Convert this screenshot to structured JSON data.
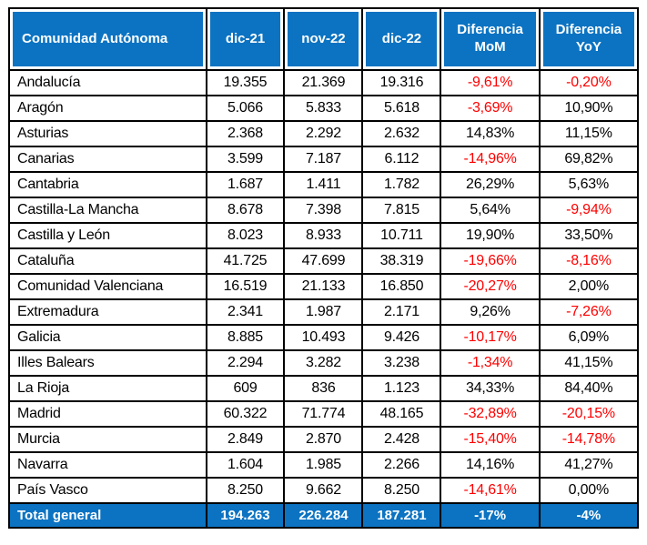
{
  "table": {
    "columns": [
      "Comunidad Autónoma",
      "dic-21",
      "nov-22",
      "dic-22",
      "Diferencia MoM",
      "Diferencia YoY"
    ],
    "rows": [
      {
        "name": "Andalucía",
        "dic21": "19.355",
        "nov22": "21.369",
        "dic22": "19.316",
        "mom": "-9,61%",
        "yoy": "-0,20%"
      },
      {
        "name": "Aragón",
        "dic21": "5.066",
        "nov22": "5.833",
        "dic22": "5.618",
        "mom": "-3,69%",
        "yoy": "10,90%"
      },
      {
        "name": "Asturias",
        "dic21": "2.368",
        "nov22": "2.292",
        "dic22": "2.632",
        "mom": "14,83%",
        "yoy": "11,15%"
      },
      {
        "name": "Canarias",
        "dic21": "3.599",
        "nov22": "7.187",
        "dic22": "6.112",
        "mom": "-14,96%",
        "yoy": "69,82%"
      },
      {
        "name": "Cantabria",
        "dic21": "1.687",
        "nov22": "1.411",
        "dic22": "1.782",
        "mom": "26,29%",
        "yoy": "5,63%"
      },
      {
        "name": "Castilla-La Mancha",
        "dic21": "8.678",
        "nov22": "7.398",
        "dic22": "7.815",
        "mom": "5,64%",
        "yoy": "-9,94%"
      },
      {
        "name": "Castilla y León",
        "dic21": "8.023",
        "nov22": "8.933",
        "dic22": "10.711",
        "mom": "19,90%",
        "yoy": "33,50%"
      },
      {
        "name": "Cataluña",
        "dic21": "41.725",
        "nov22": "47.699",
        "dic22": "38.319",
        "mom": "-19,66%",
        "yoy": "-8,16%"
      },
      {
        "name": "Comunidad Valenciana",
        "dic21": "16.519",
        "nov22": "21.133",
        "dic22": "16.850",
        "mom": "-20,27%",
        "yoy": "2,00%"
      },
      {
        "name": "Extremadura",
        "dic21": "2.341",
        "nov22": "1.987",
        "dic22": "2.171",
        "mom": "9,26%",
        "yoy": "-7,26%"
      },
      {
        "name": "Galicia",
        "dic21": "8.885",
        "nov22": "10.493",
        "dic22": "9.426",
        "mom": "-10,17%",
        "yoy": "6,09%"
      },
      {
        "name": "Illes Balears",
        "dic21": "2.294",
        "nov22": "3.282",
        "dic22": "3.238",
        "mom": "-1,34%",
        "yoy": "41,15%"
      },
      {
        "name": "La Rioja",
        "dic21": "609",
        "nov22": "836",
        "dic22": "1.123",
        "mom": "34,33%",
        "yoy": "84,40%"
      },
      {
        "name": "Madrid",
        "dic21": "60.322",
        "nov22": "71.774",
        "dic22": "48.165",
        "mom": "-32,89%",
        "yoy": "-20,15%"
      },
      {
        "name": "Murcia",
        "dic21": "2.849",
        "nov22": "2.870",
        "dic22": "2.428",
        "mom": "-15,40%",
        "yoy": "-14,78%"
      },
      {
        "name": "Navarra",
        "dic21": "1.604",
        "nov22": "1.985",
        "dic22": "2.266",
        "mom": "14,16%",
        "yoy": "41,27%"
      },
      {
        "name": "País Vasco",
        "dic21": "8.250",
        "nov22": "9.662",
        "dic22": "8.250",
        "mom": "-14,61%",
        "yoy": "0,00%"
      }
    ],
    "total": {
      "name": "Total general",
      "dic21": "194.263",
      "nov22": "226.284",
      "dic22": "187.281",
      "mom": "-17%",
      "yoy": "-4%"
    },
    "colors": {
      "header_bg": "#0b73c2",
      "header_text": "#ffffff",
      "negative": "#ff0000",
      "text": "#000000",
      "border": "#000000"
    }
  },
  "chart_data": {
    "type": "table",
    "title": "",
    "columns": [
      "Comunidad Autónoma",
      "dic-21",
      "nov-22",
      "dic-22",
      "Diferencia MoM",
      "Diferencia YoY"
    ],
    "rows": [
      [
        "Andalucía",
        "19.355",
        "21.369",
        "19.316",
        "-9,61%",
        "-0,20%"
      ],
      [
        "Aragón",
        "5.066",
        "5.833",
        "5.618",
        "-3,69%",
        "10,90%"
      ],
      [
        "Asturias",
        "2.368",
        "2.292",
        "2.632",
        "14,83%",
        "11,15%"
      ],
      [
        "Canarias",
        "3.599",
        "7.187",
        "6.112",
        "-14,96%",
        "69,82%"
      ],
      [
        "Cantabria",
        "1.687",
        "1.411",
        "1.782",
        "26,29%",
        "5,63%"
      ],
      [
        "Castilla-La Mancha",
        "8.678",
        "7.398",
        "7.815",
        "5,64%",
        "-9,94%"
      ],
      [
        "Castilla y León",
        "8.023",
        "8.933",
        "10.711",
        "19,90%",
        "33,50%"
      ],
      [
        "Cataluña",
        "41.725",
        "47.699",
        "38.319",
        "-19,66%",
        "-8,16%"
      ],
      [
        "Comunidad Valenciana",
        "16.519",
        "21.133",
        "16.850",
        "-20,27%",
        "2,00%"
      ],
      [
        "Extremadura",
        "2.341",
        "1.987",
        "2.171",
        "9,26%",
        "-7,26%"
      ],
      [
        "Galicia",
        "8.885",
        "10.493",
        "9.426",
        "-10,17%",
        "6,09%"
      ],
      [
        "Illes Balears",
        "2.294",
        "3.282",
        "3.238",
        "-1,34%",
        "41,15%"
      ],
      [
        "La Rioja",
        "609",
        "836",
        "1.123",
        "34,33%",
        "84,40%"
      ],
      [
        "Madrid",
        "60.322",
        "71.774",
        "48.165",
        "-32,89%",
        "-20,15%"
      ],
      [
        "Murcia",
        "2.849",
        "2.870",
        "2.428",
        "-15,40%",
        "-14,78%"
      ],
      [
        "Navarra",
        "1.604",
        "1.985",
        "2.266",
        "14,16%",
        "41,27%"
      ],
      [
        "País Vasco",
        "8.250",
        "9.662",
        "8.250",
        "-14,61%",
        "0,00%"
      ],
      [
        "Total general",
        "194.263",
        "226.284",
        "187.281",
        "-17%",
        "-4%"
      ]
    ],
    "layout": {
      "negative_values_color": "#ff0000",
      "header_style": "bold white on blue",
      "total_row_style": "bold white on blue",
      "number_format": "European (dot thousands, comma decimal)"
    }
  }
}
